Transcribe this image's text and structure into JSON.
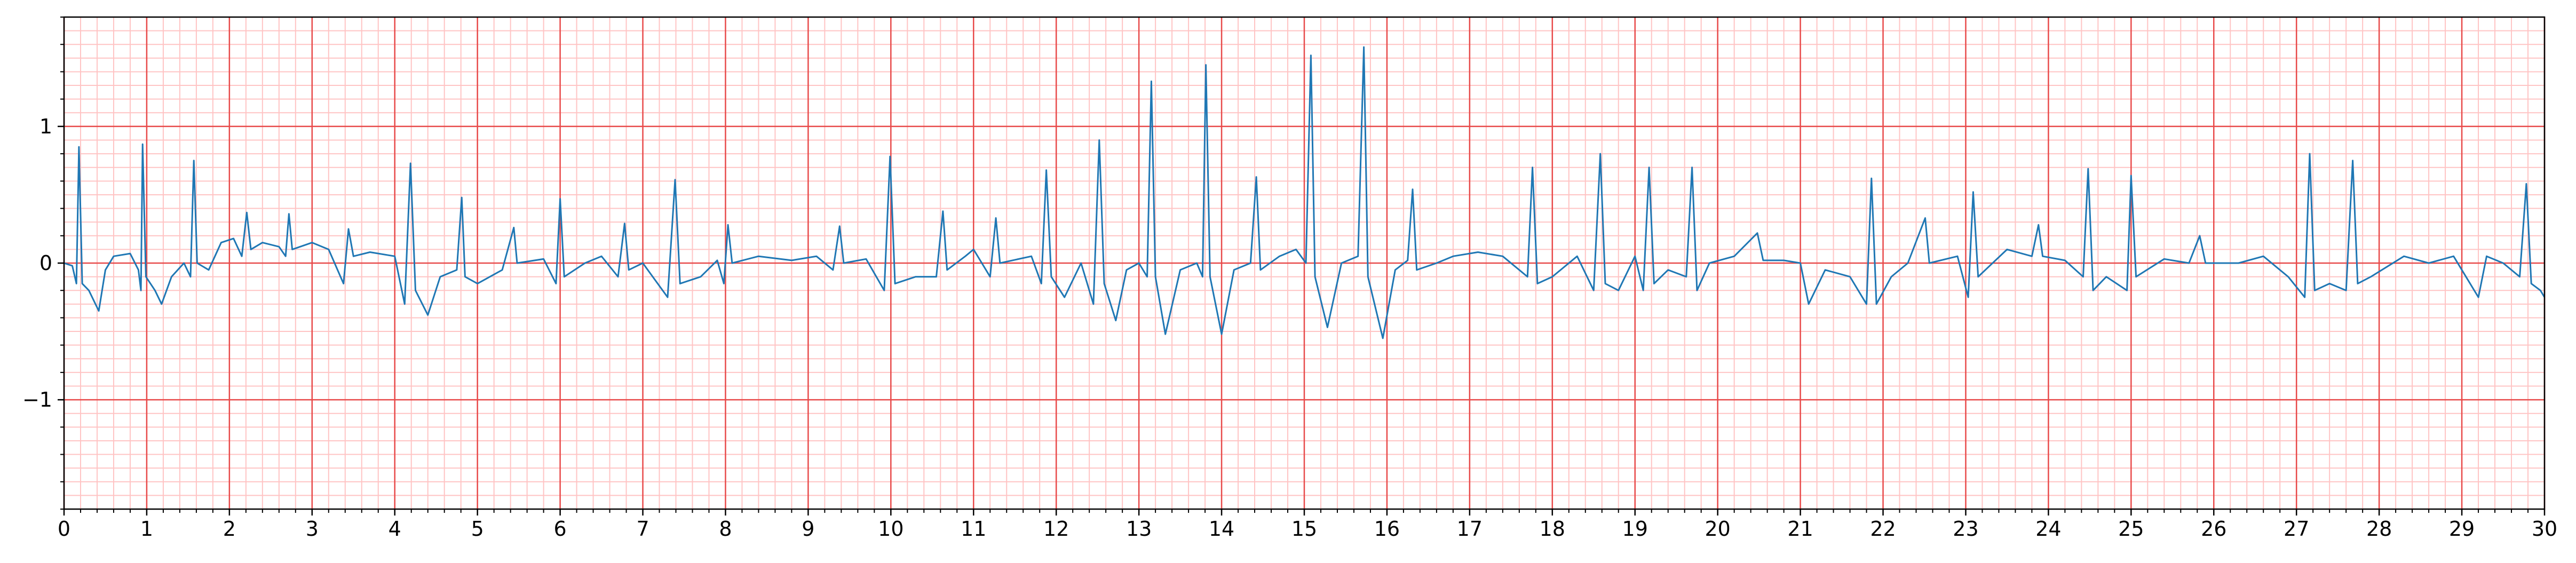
{
  "chart_data": {
    "type": "line",
    "xlim": [
      0,
      30
    ],
    "ylim": [
      -1.8,
      1.8
    ],
    "xticks": [
      0,
      1,
      2,
      3,
      4,
      5,
      6,
      7,
      8,
      9,
      10,
      11,
      12,
      13,
      14,
      15,
      16,
      17,
      18,
      19,
      20,
      21,
      22,
      23,
      24,
      25,
      26,
      27,
      28,
      29,
      30
    ],
    "yticks": [
      {
        "value": -1,
        "label": "−1"
      },
      0,
      1
    ],
    "grid": true,
    "major_grid_color": "#e84a4a",
    "minor_grid_color": "#ffc4c4",
    "minor_grid": {
      "x_step": 0.2,
      "y_step": 0.1
    },
    "x": [
      0,
      0.1,
      0.15,
      0.18,
      0.22,
      0.3,
      0.42,
      0.5,
      0.6,
      0.8,
      0.9,
      0.93,
      0.95,
      0.99,
      1.1,
      1.18,
      1.3,
      1.45,
      1.53,
      1.57,
      1.61,
      1.75,
      1.9,
      2.05,
      2.15,
      2.21,
      2.26,
      2.4,
      2.6,
      2.68,
      2.72,
      2.76,
      3.0,
      3.2,
      3.38,
      3.44,
      3.5,
      3.7,
      4.0,
      4.12,
      4.19,
      4.25,
      4.4,
      4.55,
      4.75,
      4.81,
      4.85,
      5.0,
      5.3,
      5.44,
      5.48,
      5.8,
      5.95,
      6.0,
      6.05,
      6.3,
      6.5,
      6.7,
      6.78,
      6.83,
      7.0,
      7.3,
      7.39,
      7.45,
      7.7,
      7.9,
      7.98,
      8.03,
      8.08,
      8.4,
      8.8,
      9.1,
      9.3,
      9.38,
      9.43,
      9.7,
      9.92,
      9.99,
      10.05,
      10.3,
      10.55,
      10.63,
      10.68,
      10.9,
      11.0,
      11.2,
      11.27,
      11.32,
      11.7,
      11.82,
      11.88,
      11.94,
      12.1,
      12.3,
      12.45,
      12.52,
      12.58,
      12.72,
      12.85,
      13.0,
      13.1,
      13.15,
      13.2,
      13.32,
      13.5,
      13.7,
      13.77,
      13.81,
      13.86,
      14.0,
      14.15,
      14.35,
      14.42,
      14.47,
      14.7,
      14.9,
      15.02,
      15.08,
      15.13,
      15.28,
      15.45,
      15.65,
      15.72,
      15.77,
      15.95,
      16.1,
      16.25,
      16.31,
      16.36,
      16.6,
      16.8,
      17.1,
      17.4,
      17.7,
      17.76,
      17.82,
      18.0,
      18.3,
      18.5,
      18.58,
      18.64,
      18.8,
      19.0,
      19.1,
      19.17,
      19.23,
      19.4,
      19.62,
      19.69,
      19.75,
      19.9,
      20.2,
      20.48,
      20.55,
      20.8,
      21.0,
      21.1,
      21.3,
      21.6,
      21.8,
      21.86,
      21.92,
      22.1,
      22.3,
      22.51,
      22.56,
      22.9,
      23.03,
      23.09,
      23.15,
      23.5,
      23.8,
      23.88,
      23.93,
      24.2,
      24.42,
      24.48,
      24.54,
      24.7,
      24.95,
      25.0,
      25.06,
      25.4,
      25.7,
      25.83,
      25.9,
      26.3,
      26.6,
      26.9,
      27.1,
      27.16,
      27.22,
      27.4,
      27.6,
      27.68,
      27.74,
      27.9,
      28.3,
      28.6,
      28.9,
      29.2,
      29.3,
      29.5,
      29.7,
      29.78,
      29.84,
      29.95,
      30.0
    ],
    "series": [
      {
        "color": "#1f77b4",
        "values": [
          0,
          -0.02,
          -0.15,
          0.85,
          -0.15,
          -0.2,
          -0.35,
          -0.05,
          0.05,
          0.07,
          -0.05,
          -0.2,
          0.87,
          -0.1,
          -0.2,
          -0.3,
          -0.1,
          0.0,
          -0.1,
          0.75,
          0.0,
          -0.05,
          0.15,
          0.18,
          0.05,
          0.37,
          0.1,
          0.15,
          0.12,
          0.05,
          0.36,
          0.1,
          0.15,
          0.1,
          -0.15,
          0.25,
          0.05,
          0.08,
          0.05,
          -0.3,
          0.73,
          -0.2,
          -0.38,
          -0.1,
          -0.05,
          0.48,
          -0.1,
          -0.15,
          -0.05,
          0.26,
          0.0,
          0.03,
          -0.15,
          0.47,
          -0.1,
          0.0,
          0.05,
          -0.1,
          0.29,
          -0.05,
          0.0,
          -0.25,
          0.61,
          -0.15,
          -0.1,
          0.02,
          -0.15,
          0.28,
          0.0,
          0.05,
          0.02,
          0.05,
          -0.05,
          0.27,
          0.0,
          0.03,
          -0.2,
          0.78,
          -0.15,
          -0.1,
          -0.1,
          0.38,
          -0.05,
          0.05,
          0.1,
          -0.1,
          0.33,
          0.0,
          0.05,
          -0.15,
          0.68,
          -0.1,
          -0.25,
          0.0,
          -0.3,
          0.9,
          -0.15,
          -0.42,
          -0.05,
          0.0,
          -0.1,
          1.33,
          -0.1,
          -0.52,
          -0.05,
          0.0,
          -0.1,
          1.45,
          -0.1,
          -0.52,
          -0.05,
          0.0,
          0.63,
          -0.05,
          0.05,
          0.1,
          0.0,
          1.52,
          -0.1,
          -0.47,
          0.0,
          0.05,
          1.58,
          -0.1,
          -0.55,
          -0.05,
          0.02,
          0.54,
          -0.05,
          0.0,
          0.05,
          0.08,
          0.05,
          -0.1,
          0.7,
          -0.15,
          -0.1,
          0.05,
          -0.2,
          0.8,
          -0.15,
          -0.2,
          0.05,
          -0.2,
          0.7,
          -0.15,
          -0.05,
          -0.1,
          0.7,
          -0.2,
          0.0,
          0.05,
          0.22,
          0.02,
          0.02,
          0.0,
          -0.3,
          -0.05,
          -0.1,
          -0.3,
          0.62,
          -0.3,
          -0.1,
          0.0,
          0.33,
          0.0,
          0.05,
          -0.25,
          0.52,
          -0.1,
          0.1,
          0.05,
          0.28,
          0.05,
          0.02,
          -0.1,
          0.69,
          -0.2,
          -0.1,
          -0.2,
          0.64,
          -0.1,
          0.03,
          0.0,
          0.2,
          0.0,
          0.0,
          0.05,
          -0.1,
          -0.25,
          0.8,
          -0.2,
          -0.15,
          -0.2,
          0.75,
          -0.15,
          -0.1,
          0.05,
          0.0,
          0.05,
          -0.25,
          0.05,
          0.0,
          -0.1,
          0.58,
          -0.15,
          -0.2,
          -0.25
        ]
      }
    ]
  }
}
